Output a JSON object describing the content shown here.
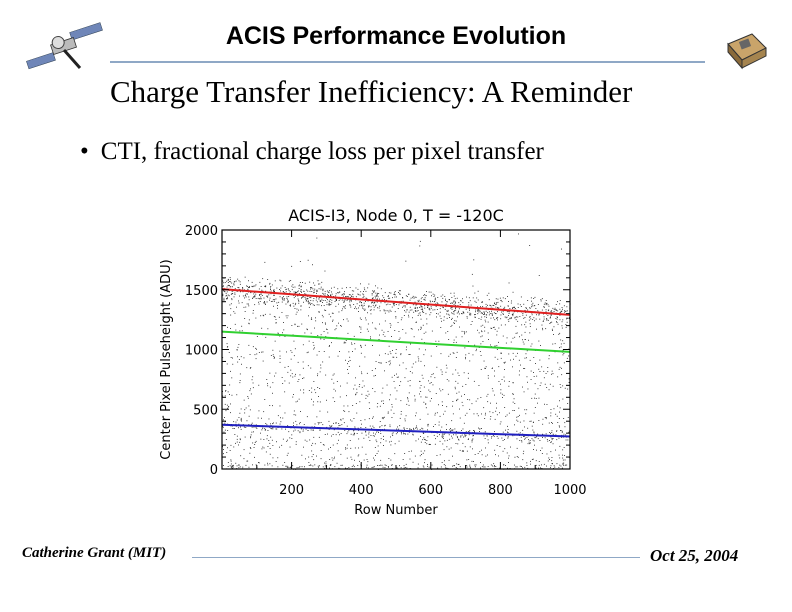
{
  "header": {
    "title": "ACIS Performance Evolution"
  },
  "slide": {
    "subtitle": "Charge Transfer Inefficiency: A Reminder",
    "bullets": [
      "CTI, fractional charge loss per pixel transfer"
    ]
  },
  "footer": {
    "author": "Catherine Grant (MIT)",
    "date": "Oct 25, 2004"
  },
  "colors": {
    "rule": "#8fa8c6",
    "red": "#e02020",
    "green": "#30d030",
    "blue": "#2020c0"
  },
  "icons": {
    "left_logo": "chandra-satellite-icon",
    "right_logo": "acis-instrument-icon"
  },
  "chart_data": {
    "type": "scatter",
    "title": "ACIS-I3, Node 0, T = -120C",
    "xlabel": "Row Number",
    "ylabel": "Center Pixel Pulseheight (ADU)",
    "xlim": [
      0,
      1000
    ],
    "ylim": [
      0,
      2000
    ],
    "xticks": [
      "200",
      "400",
      "600",
      "800",
      "1000"
    ],
    "xtick_values": [
      200,
      400,
      600,
      800,
      1000
    ],
    "yticks": [
      "0",
      "500",
      "1000",
      "1500",
      "2000"
    ],
    "ytick_values": [
      0,
      500,
      1000,
      1500,
      2000
    ],
    "grid": false,
    "fit_lines": [
      {
        "color": "#e02020",
        "x": [
          0,
          1000
        ],
        "y": [
          1505,
          1290
        ]
      },
      {
        "color": "#30d030",
        "x": [
          0,
          1000
        ],
        "y": [
          1150,
          980
        ]
      },
      {
        "color": "#2020c0",
        "x": [
          0,
          1000
        ],
        "y": [
          370,
          272
        ]
      }
    ]
  }
}
